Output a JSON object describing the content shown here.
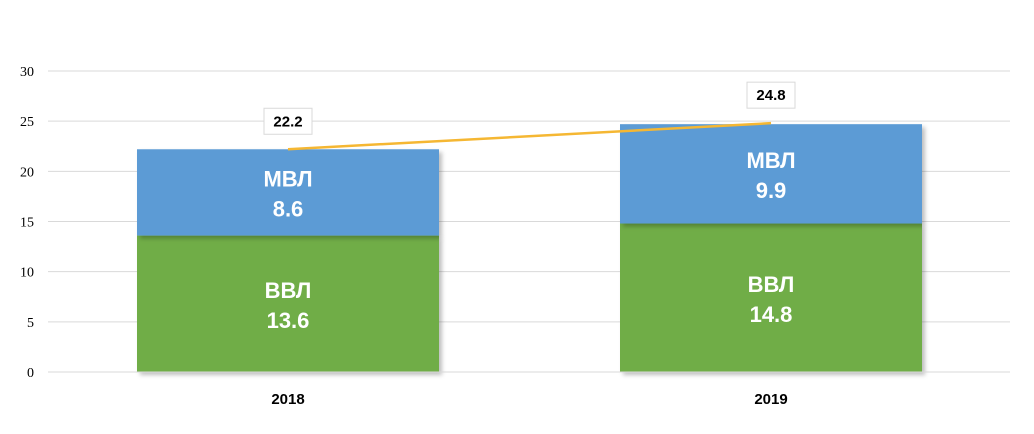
{
  "chart_data": {
    "type": "bar",
    "stacked": true,
    "categories": [
      "2018",
      "2019"
    ],
    "series": [
      {
        "name": "ВВЛ",
        "values": [
          13.6,
          14.8
        ],
        "color": "#70ad47"
      },
      {
        "name": "МВЛ",
        "values": [
          8.6,
          9.9
        ],
        "color": "#5b9bd5"
      }
    ],
    "totals": {
      "values": [
        22.2,
        24.8
      ],
      "color": "#f5b733"
    },
    "ylim": [
      0,
      30
    ],
    "yticks": [
      "0",
      "5",
      "10",
      "15",
      "20",
      "25",
      "30"
    ],
    "grid": true,
    "legend": "none",
    "title": "",
    "xlabel": "",
    "ylabel": ""
  }
}
